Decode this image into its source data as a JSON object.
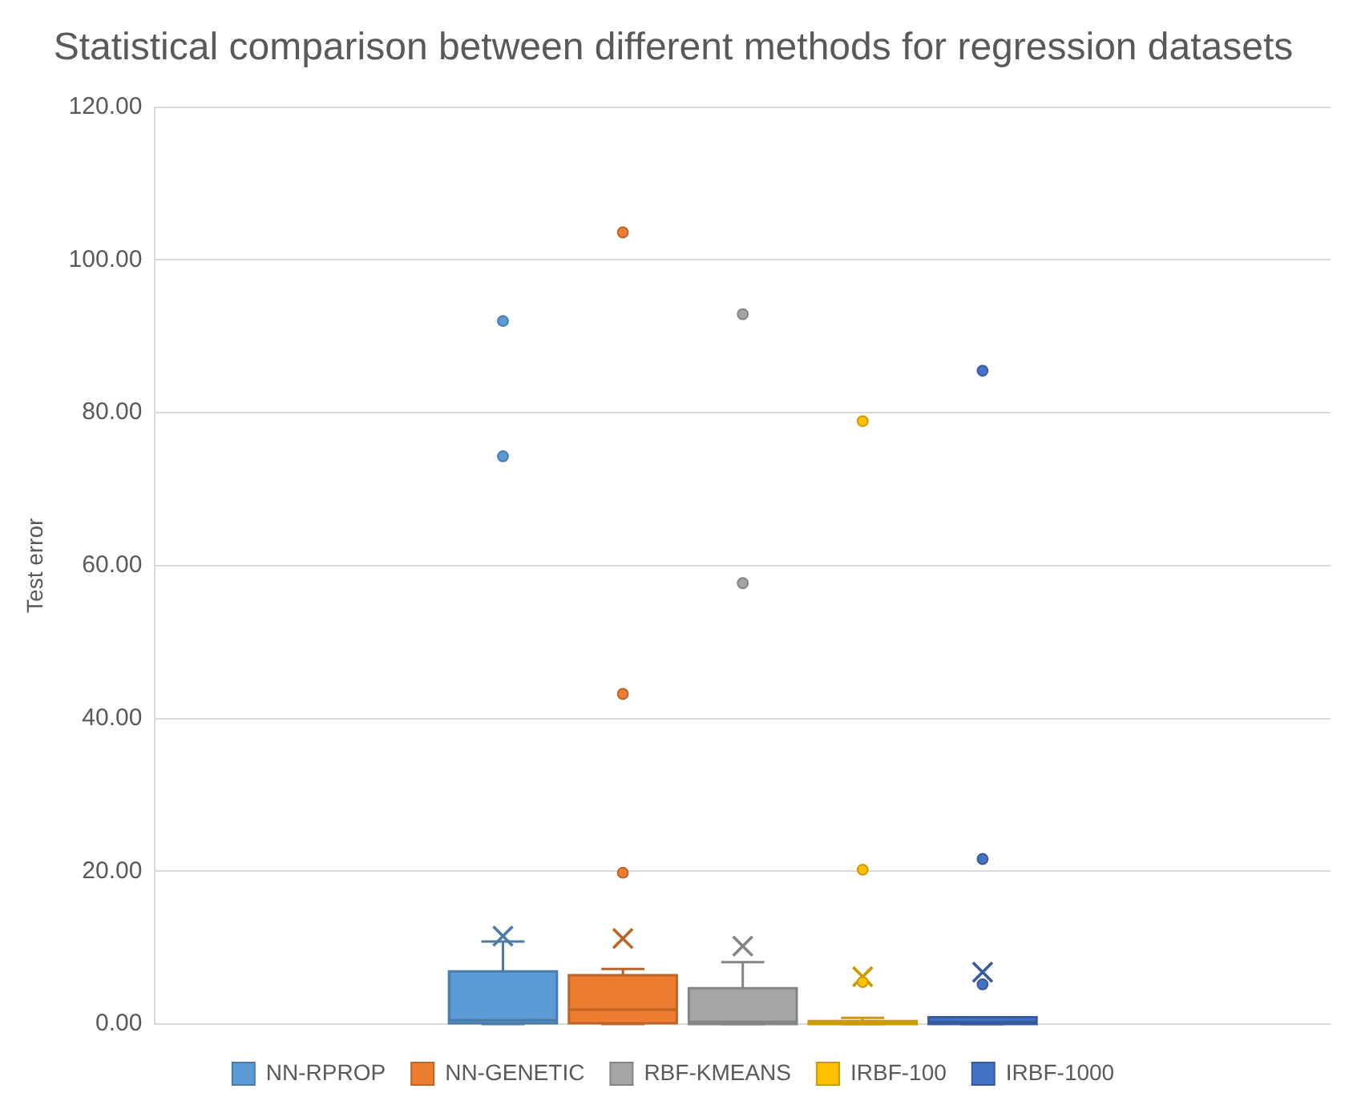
{
  "chart_data": {
    "type": "box",
    "title": "Statistical comparison between different methods for regression datasets",
    "ylabel": "Test error",
    "categories": [
      null
    ],
    "series": [
      {
        "name": "NN-RPROP",
        "color": "#5b9bd5",
        "boxes": [
          {
            "low": 0,
            "q1": 0.1,
            "median": 0.5,
            "q3": 6.9,
            "high": 10.8,
            "mean": 11.5,
            "outliers": [
              92,
              74.3
            ]
          }
        ]
      },
      {
        "name": "NN-GENETIC",
        "color": "#ed7d31",
        "boxes": [
          {
            "low": 0,
            "q1": 0.1,
            "median": 1.9,
            "q3": 6.4,
            "high": 7.2,
            "mean": 11.2,
            "outliers": [
              103.6,
              43.2,
              19.8
            ]
          }
        ]
      },
      {
        "name": "RBF-KMEANS",
        "color": "#a5a5a5",
        "boxes": [
          {
            "low": 0,
            "q1": 0,
            "median": 0.3,
            "q3": 4.7,
            "high": 8.1,
            "mean": 10.2,
            "outliers": [
              92.9,
              57.7
            ]
          }
        ]
      },
      {
        "name": "IRBF-100",
        "color": "#ffc000",
        "boxes": [
          {
            "low": 0,
            "q1": 0,
            "median": 0.1,
            "q3": 0.4,
            "high": 0.8,
            "mean": 6.2,
            "outliers": [
              78.9,
              20.2,
              5.5
            ]
          }
        ]
      },
      {
        "name": "IRBF-1000",
        "color": "#4472c4",
        "boxes": [
          {
            "low": 0,
            "q1": 0,
            "median": 0.3,
            "q3": 0.9,
            "high": 0.9,
            "mean": 6.8,
            "outliers": [
              85.5,
              21.6,
              5.2
            ]
          }
        ]
      }
    ],
    "ylim": [
      0,
      120
    ],
    "yticks": [
      {
        "value": 0,
        "label": "0.00"
      },
      {
        "value": 20,
        "label": "20.00"
      },
      {
        "value": 40,
        "label": "40.00"
      },
      {
        "value": 60,
        "label": "60.00"
      },
      {
        "value": 80,
        "label": "80.00"
      },
      {
        "value": 100,
        "label": "100.00"
      },
      {
        "value": 120,
        "label": "120.00"
      }
    ],
    "grid": "y",
    "legend": "bottom",
    "tick_labels": "y",
    "marker": "circle"
  }
}
